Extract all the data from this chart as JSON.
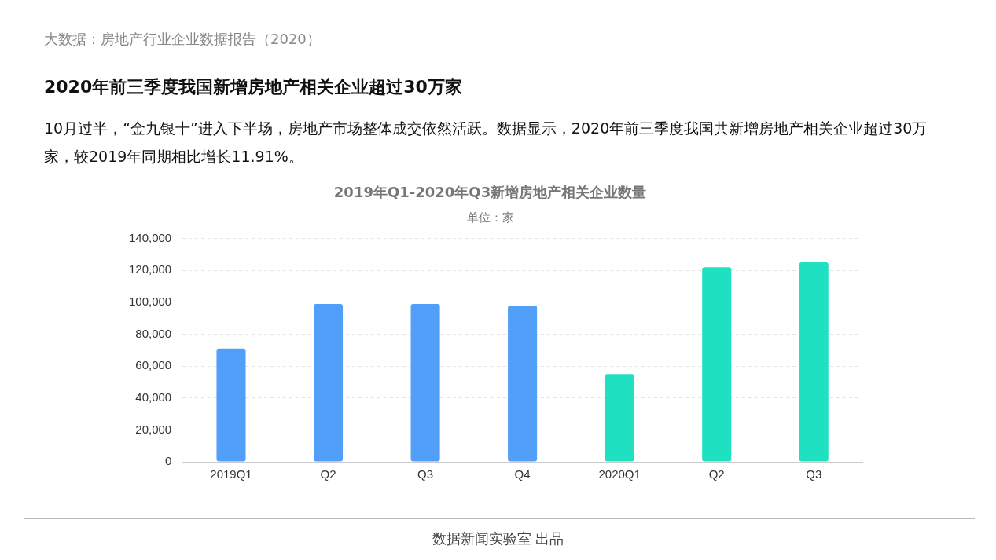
{
  "chart_data": {
    "type": "bar",
    "title": "2019年Q1-2020年Q3新增房地产相关企业数量",
    "subtitle": "单位：家",
    "categories": [
      "2019Q1",
      "Q2",
      "Q3",
      "Q4",
      "2020Q1",
      "Q2",
      "Q3"
    ],
    "values": [
      71000,
      99000,
      99000,
      98000,
      55000,
      122000,
      125000
    ],
    "colors": [
      "#519ff8",
      "#519ff8",
      "#519ff8",
      "#519ff8",
      "#1fe0c1",
      "#1fe0c1",
      "#1fe0c1"
    ],
    "ylim": [
      0,
      140000
    ],
    "yticks": [
      {
        "value": 0,
        "label": "0"
      },
      {
        "value": 20000,
        "label": "20,000"
      },
      {
        "value": 40000,
        "label": "40,000"
      },
      {
        "value": 60000,
        "label": "60,000"
      },
      {
        "value": 80000,
        "label": "80,000"
      },
      {
        "value": 100000,
        "label": "100,000"
      },
      {
        "value": 120000,
        "label": "120,000"
      },
      {
        "value": 140000,
        "label": "140,000"
      }
    ],
    "grid": "y",
    "legend": false,
    "annotations": [
      "大数据：房地产行业企业数据报告（2020）",
      "2020年前三季度我国新增房地产相关企业超过30万家",
      "10月过半，“金九银十”进入下半场，房地产市场整体成交依然活跃。数据显示，2020年前三季度我国共新增房地产相关企业超过30万家，较2019年同期相比增长11.91%。",
      "数据新闻实验室 出品"
    ]
  }
}
